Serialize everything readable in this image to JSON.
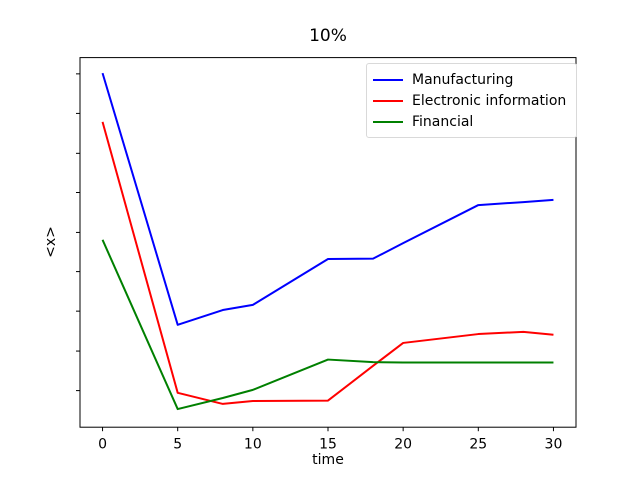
{
  "figure": {
    "background_color": "#ffffff",
    "frame_color": "#000000",
    "text_color": "#000000",
    "legend_border_color": "#d9d9d9"
  },
  "chart_data": {
    "type": "line",
    "title": "10%",
    "xlabel": "time",
    "ylabel": "<x>",
    "grid": false,
    "legend_position": "upper right",
    "xlim": [
      -1.5,
      31.5
    ],
    "ylim": [
      0,
      1
    ],
    "x_ticks": [
      0,
      5,
      10,
      15,
      20,
      25,
      30
    ],
    "x_tick_labels": [
      "0",
      "5",
      "10",
      "15",
      "20",
      "25",
      "30"
    ],
    "y_ticks": [
      0.099,
      0.206,
      0.314,
      0.421,
      0.527,
      0.635,
      0.741,
      0.849,
      0.956
    ],
    "y_tick_labels": [],
    "x": [
      0,
      5,
      8,
      10,
      15,
      18,
      20,
      25,
      28,
      30
    ],
    "series": [
      {
        "name": "Manufacturing",
        "color": "#0000ff",
        "values": [
          0.958,
          0.277,
          0.317,
          0.331,
          0.455,
          0.456,
          0.498,
          0.601,
          0.609,
          0.615
        ]
      },
      {
        "name": "Electronic information",
        "color": "#ff0000",
        "values": [
          0.826,
          0.093,
          0.063,
          0.071,
          0.072,
          0.166,
          0.228,
          0.252,
          0.258,
          0.25
        ]
      },
      {
        "name": "Financial",
        "color": "#008000",
        "values": [
          0.507,
          0.049,
          0.079,
          0.101,
          0.183,
          0.176,
          0.175,
          0.175,
          0.175,
          0.175
        ]
      }
    ]
  }
}
